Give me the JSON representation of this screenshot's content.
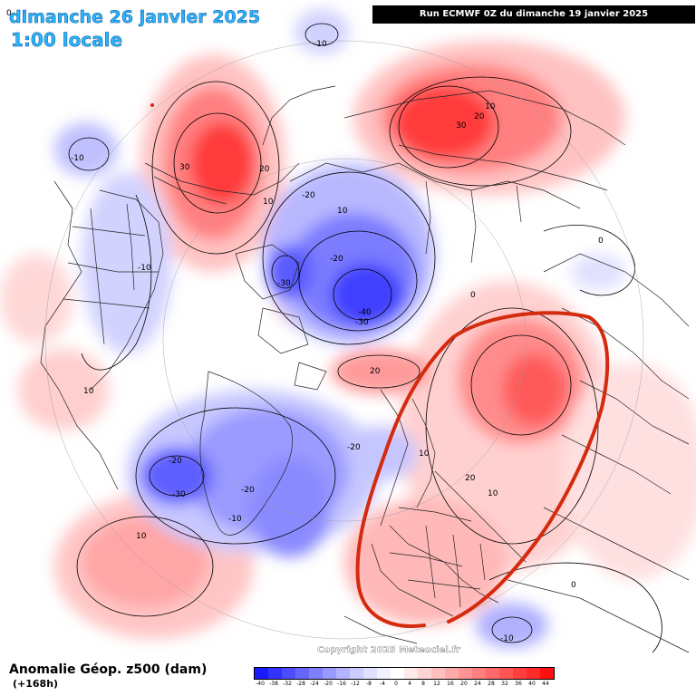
{
  "header": {
    "date_title": "dimanche 26 janvier 2025",
    "local_hour": "1:00 locale",
    "run_info": "Run ECMWF 0Z du dimanche 19 janvier 2025"
  },
  "map": {
    "copyright": "Copyright 2025 Meteociel.fr",
    "corner_label": "0",
    "contour_labels": [
      "-10",
      "-10",
      "-10",
      "-10",
      "-20",
      "-20",
      "-20",
      "-20",
      "-20",
      "-30",
      "-30",
      "-30",
      "-40",
      "10",
      "10",
      "10",
      "10",
      "10",
      "10",
      "10",
      "20",
      "20",
      "20",
      "20",
      "30",
      "30",
      "0",
      "0",
      "0",
      "-10"
    ],
    "annotation_color": "#d42a0e"
  },
  "legend": {
    "title": "Anomalie Géop. z500 (dam)",
    "subtitle": "(+168h)",
    "ticks": [
      "-40",
      "-38",
      "-32",
      "-28",
      "-24",
      "-20",
      "-16",
      "-12",
      "-8",
      "-4",
      "0",
      "4",
      "8",
      "12",
      "16",
      "20",
      "24",
      "28",
      "32",
      "36",
      "40",
      "44"
    ],
    "colors": [
      "#1a1aff",
      "#3333ff",
      "#4d4dff",
      "#6666ff",
      "#7f7fff",
      "#9999ff",
      "#b3b3ff",
      "#ccccff",
      "#e0e0ff",
      "#f0f0ff",
      "#ffffff",
      "#ffeaea",
      "#ffd4d4",
      "#ffbfbf",
      "#ffaaaa",
      "#ff9494",
      "#ff7f7f",
      "#ff6a6a",
      "#ff5555",
      "#ff3f3f",
      "#ff2a2a",
      "#ff1010"
    ]
  }
}
